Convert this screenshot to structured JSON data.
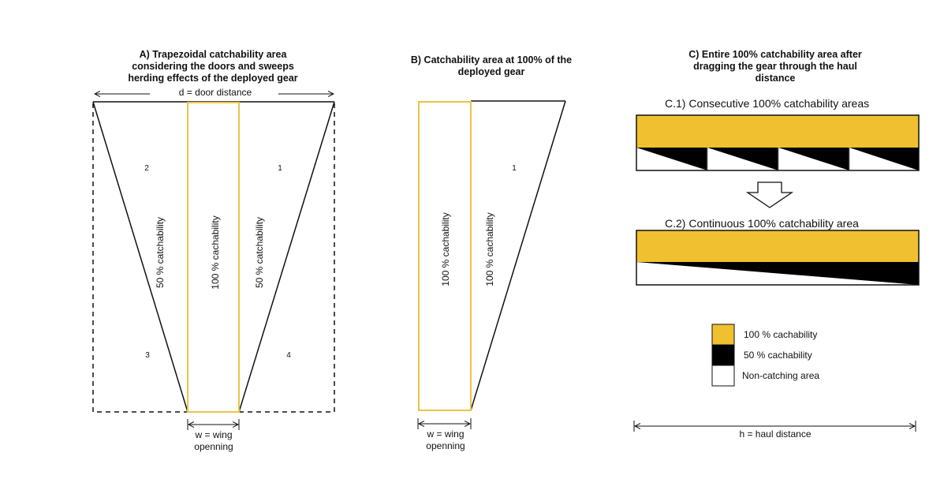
{
  "panel_a": {
    "title_lines": [
      "A) Trapezoidal catchability area",
      "considering the doors and sweeps",
      "herding effects of the deployed gear"
    ],
    "door_distance_label": "d = door distance",
    "region_labels": [
      "2",
      "1",
      "3",
      "4"
    ],
    "left_rotated_label": "50 % catchability",
    "center_rotated_label": "100 % cachability",
    "right_rotated_label": "50 % catchability",
    "wing_label_lines": [
      "w = wing",
      "openning"
    ]
  },
  "panel_b": {
    "title_lines": [
      "B) Catchability area at 100% of the",
      "deployed gear"
    ],
    "region_label": "1",
    "rotated_label_1": "100 % cachability",
    "rotated_label_2": "100 % cachability",
    "wing_label_lines": [
      "w = wing",
      "openning"
    ]
  },
  "panel_c": {
    "title_lines": [
      "C) Entire 100% catchability area after",
      "dragging the gear through the haul",
      "distance"
    ],
    "sub1_title": "C.1) Consecutive 100% catchability areas",
    "sub2_title": "C.2) Continuous 100% catchability area",
    "haul_label": "h = haul distance"
  },
  "legend": {
    "items": [
      {
        "label": "100 % cachability",
        "color": "#F0C030"
      },
      {
        "label": "50 % cachability",
        "color": "#000000"
      },
      {
        "label": "Non-catching area",
        "color": "#FFFFFF"
      }
    ]
  },
  "colors": {
    "yellow": "#F0C030",
    "outline_yellow": "#E8C547",
    "black": "#000000"
  }
}
